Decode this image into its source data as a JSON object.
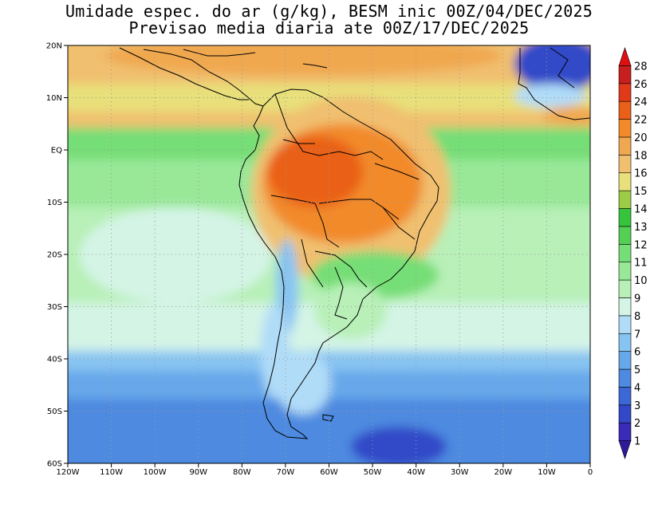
{
  "title": {
    "line1": "Umidade espec. do ar (g/kg), BESM inic 00Z/04/DEC/2025",
    "line2": "Previsao media diaria ate 00Z/17/DEC/2025"
  },
  "lat_labels": [
    "20N",
    "10N",
    "EQ",
    "10S",
    "20S",
    "30S",
    "40S",
    "50S",
    "60S"
  ],
  "lon_labels": [
    "120W",
    "110W",
    "100W",
    "90W",
    "80W",
    "70W",
    "60W",
    "50W",
    "40W",
    "30W",
    "20W",
    "10W",
    "0"
  ],
  "colorbar": {
    "levels": [
      "1",
      "2",
      "3",
      "4",
      "5",
      "6",
      "7",
      "8",
      "9",
      "10",
      "11",
      "12",
      "13",
      "14",
      "15",
      "16",
      "18",
      "20",
      "22",
      "24",
      "26",
      "28"
    ],
    "colors": [
      "#2e1a9a",
      "#3a2bb8",
      "#3348c8",
      "#3c68d6",
      "#4d8ae0",
      "#67a8ea",
      "#88c4f2",
      "#b0dcf8",
      "#d4f4e6",
      "#b8f0b8",
      "#98e898",
      "#76de76",
      "#54d054",
      "#36c43c",
      "#9ccc46",
      "#e8e07a",
      "#f0c070",
      "#f0a850",
      "#f28a2a",
      "#ea6018",
      "#e03a1a",
      "#c81e1e",
      "#e01010"
    ]
  },
  "colors": {
    "land_border": "#000000",
    "grid": "#9a9a9a"
  }
}
